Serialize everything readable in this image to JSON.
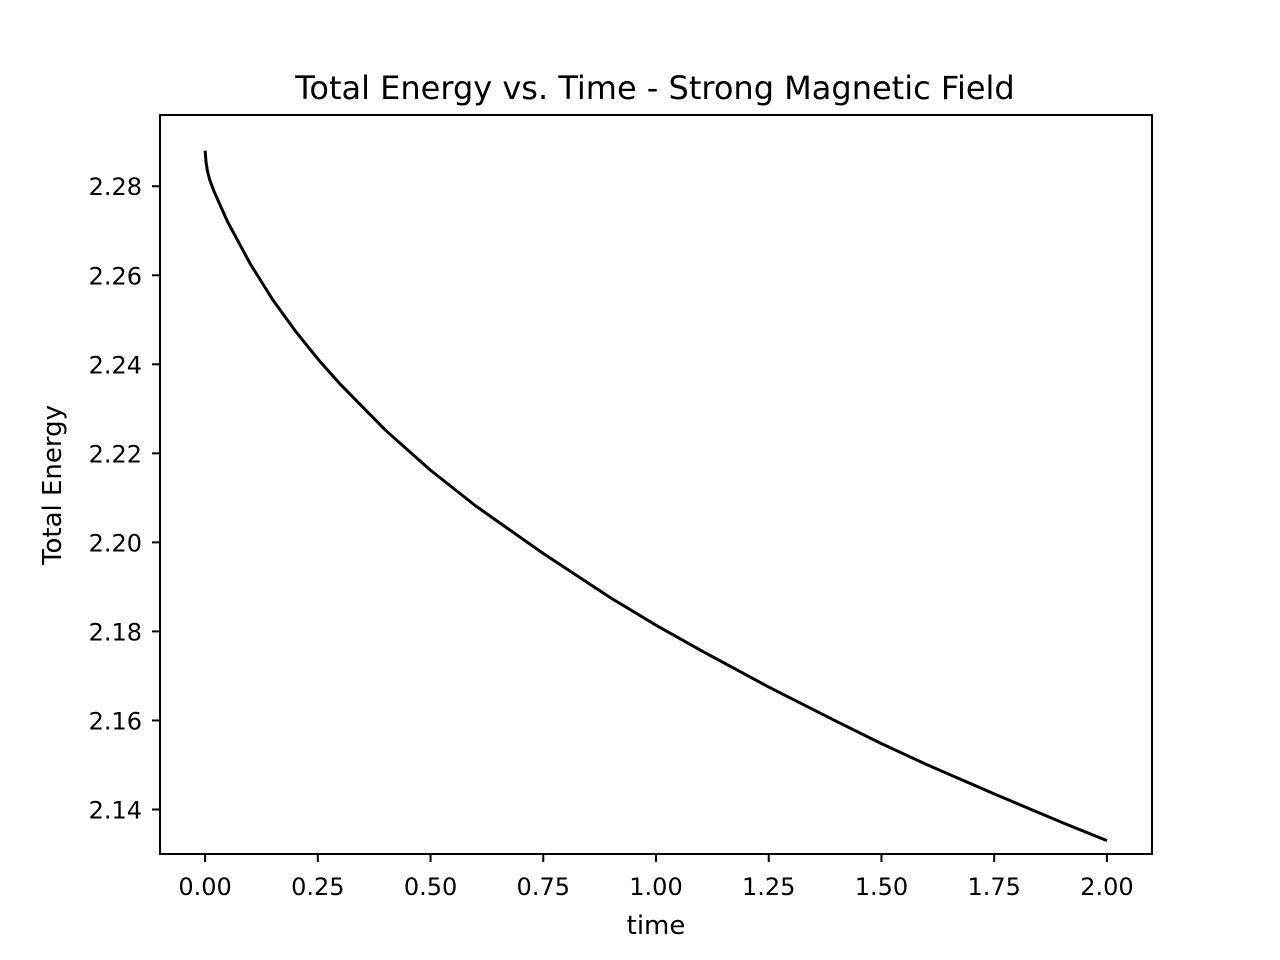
{
  "chart_data": {
    "type": "line",
    "title": "Total Energy vs. Time - Strong Magnetic Field",
    "xlabel": "time",
    "ylabel": "Total Energy",
    "xlim": [
      -0.1,
      2.1
    ],
    "ylim": [
      2.13,
      2.296
    ],
    "xticks": [
      0.0,
      0.25,
      0.5,
      0.75,
      1.0,
      1.25,
      1.5,
      1.75,
      2.0
    ],
    "xtick_labels": [
      "0.00",
      "0.25",
      "0.50",
      "0.75",
      "1.00",
      "1.25",
      "1.50",
      "1.75",
      "2.00"
    ],
    "yticks": [
      2.14,
      2.16,
      2.18,
      2.2,
      2.22,
      2.24,
      2.26,
      2.28
    ],
    "ytick_labels": [
      "2.14",
      "2.16",
      "2.18",
      "2.20",
      "2.22",
      "2.24",
      "2.26",
      "2.28"
    ],
    "grid": false,
    "series": [
      {
        "color": "#000000",
        "x": [
          0.0,
          0.002,
          0.005,
          0.01,
          0.02,
          0.05,
          0.1,
          0.15,
          0.2,
          0.25,
          0.3,
          0.4,
          0.5,
          0.6,
          0.75,
          0.9,
          1.0,
          1.1,
          1.25,
          1.4,
          1.5,
          1.6,
          1.75,
          1.9,
          2.0
        ],
        "y": [
          2.288,
          2.2855,
          2.2835,
          2.2815,
          2.2788,
          2.272,
          2.2626,
          2.2545,
          2.2475,
          2.2412,
          2.2355,
          2.2252,
          2.2162,
          2.2082,
          2.1975,
          2.1875,
          2.1814,
          2.1757,
          2.1675,
          2.1598,
          2.1548,
          2.1501,
          2.1435,
          2.1371,
          2.133
        ]
      }
    ]
  }
}
